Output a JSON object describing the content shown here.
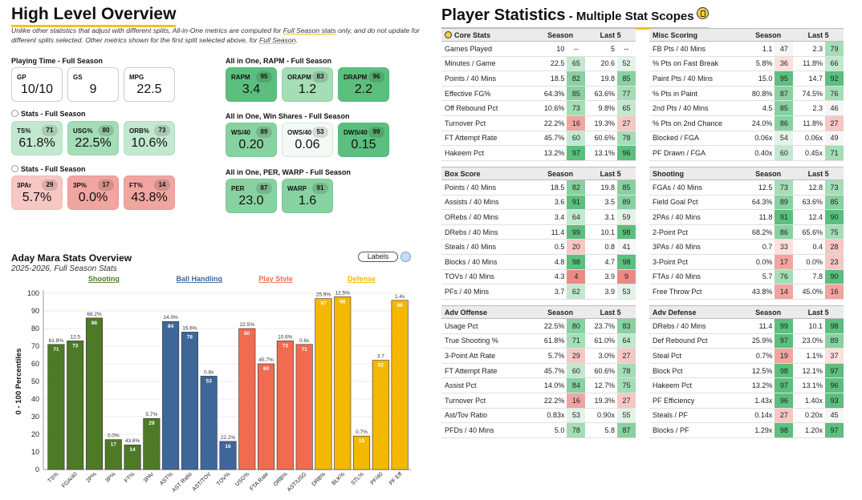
{
  "colors": {
    "shooting": "#4e7a27",
    "ball_handling": "#3f6699",
    "play_style": "#f26b50",
    "defense": "#f5b800",
    "accent": "#f0c419"
  },
  "overview": {
    "title": "High Level Overview",
    "note_part1": "Unlike other statistics that adjust with different splits, All-in-One metrics are computed for ",
    "note_link1": "Full Season stats",
    "note_part2": " only, and do not update for different splits selected. Other metrics shown for the first split selected above, for ",
    "note_link2": "Full Season",
    "note_part3": ".",
    "playing_time": {
      "label": "Playing Time - Full Season",
      "cards": [
        {
          "key": "GP",
          "value": "10/10"
        },
        {
          "key": "GS",
          "value": "9"
        },
        {
          "key": "MPG",
          "value": "22.5"
        }
      ]
    },
    "stats1": {
      "label": "Stats - Full Season",
      "cards": [
        {
          "key": "TS%",
          "pct": "71",
          "value": "61.8%"
        },
        {
          "key": "USG%",
          "pct": "80",
          "value": "22.5%"
        },
        {
          "key": "ORB%",
          "pct": "73",
          "value": "10.6%"
        }
      ]
    },
    "stats2": {
      "label": "Stats - Full Season",
      "cards": [
        {
          "key": "3PAr",
          "pct": "29",
          "value": "5.7%"
        },
        {
          "key": "3P%",
          "pct": "17",
          "value": "0.0%"
        },
        {
          "key": "FT%",
          "pct": "14",
          "value": "43.8%"
        }
      ]
    },
    "rapm": {
      "label": "All in One, RAPM - Full Season",
      "cards": [
        {
          "key": "RAPM",
          "pct": "95",
          "value": "3.4"
        },
        {
          "key": "ORAPM",
          "pct": "83",
          "value": "1.2"
        },
        {
          "key": "DRAPM",
          "pct": "96",
          "value": "2.2"
        }
      ]
    },
    "winshares": {
      "label": "All in One, Win Shares - Full Season",
      "cards": [
        {
          "key": "WS/40",
          "pct": "89",
          "value": "0.20"
        },
        {
          "key": "OWS/40",
          "pct": "53",
          "value": "0.06"
        },
        {
          "key": "DWS/40",
          "pct": "99",
          "value": "0.15"
        }
      ]
    },
    "perwarp": {
      "label": "All in One, PER, WARP - Full Season",
      "cards": [
        {
          "key": "PER",
          "pct": "87",
          "value": "23.0"
        },
        {
          "key": "WARP",
          "pct": "91",
          "value": "1.6"
        }
      ]
    }
  },
  "chart_section": {
    "title": "Aday Mara Stats Overview",
    "subtitle": "2025-2026, Full Season Stats",
    "labels_button": "Labels"
  },
  "chart_data": {
    "type": "bar",
    "ylabel": "0 - 100 Percentiles",
    "ylim": [
      0,
      100
    ],
    "yticks": [
      0,
      10,
      20,
      30,
      40,
      50,
      60,
      70,
      80,
      90,
      100
    ],
    "groups": [
      {
        "name": "Shooting",
        "color": "#4e7a27"
      },
      {
        "name": "Ball Handling",
        "color": "#3f6699"
      },
      {
        "name": "Play Style",
        "color": "#f26b50"
      },
      {
        "name": "Defense",
        "color": "#f5b800"
      }
    ],
    "bars": [
      {
        "cat": "TS%",
        "value": 71,
        "raw": "61.8%",
        "group": 0
      },
      {
        "cat": "FGA/40",
        "value": 73,
        "raw": "12.5",
        "group": 0
      },
      {
        "cat": "2P%",
        "value": 86,
        "raw": "68.2%",
        "group": 0
      },
      {
        "cat": "3P%",
        "value": 17,
        "raw": "0.0%",
        "group": 0
      },
      {
        "cat": "FT%",
        "value": 14,
        "raw": "43.8%",
        "group": 0
      },
      {
        "cat": "3PAr",
        "value": 29,
        "raw": "5.7%",
        "group": 0
      },
      {
        "cat": "AST%",
        "value": 84,
        "raw": "14.0%",
        "group": 1
      },
      {
        "cat": "AST Ratio",
        "value": 78,
        "raw": "15.6%",
        "group": 1
      },
      {
        "cat": "AST/TOV",
        "value": 53,
        "raw": "0.8x",
        "group": 1
      },
      {
        "cat": "TOV%",
        "value": 16,
        "raw": "22.2%",
        "group": 1
      },
      {
        "cat": "USG%",
        "value": 80,
        "raw": "22.5%",
        "group": 2
      },
      {
        "cat": "FTA Rate",
        "value": 60,
        "raw": "45.7%",
        "group": 2
      },
      {
        "cat": "ORB%",
        "value": 73,
        "raw": "10.6%",
        "group": 2
      },
      {
        "cat": "AST/USG",
        "value": 71,
        "raw": "0.6x",
        "group": 2
      },
      {
        "cat": "DRB%",
        "value": 97,
        "raw": "25.9%",
        "group": 3
      },
      {
        "cat": "BLK%",
        "value": 98,
        "raw": "12.5%",
        "group": 3
      },
      {
        "cat": "STL%",
        "value": 19,
        "raw": "0.7%",
        "group": 3
      },
      {
        "cat": "PF/40",
        "value": 62,
        "raw": "3.7",
        "group": 3
      },
      {
        "cat": "PF Eff",
        "value": 96,
        "raw": "1.4x",
        "group": 3
      }
    ]
  },
  "player_stats": {
    "title": "Player Statistics",
    "subtitle": " - Multiple Stat Scopes",
    "tables": [
      {
        "title": "Core Stats",
        "col1": "Season",
        "col2": "Last 5",
        "rows": [
          [
            "Games Played",
            "10",
            "",
            "5",
            ""
          ],
          [
            "Minutes / Game",
            "22.5",
            "65",
            "20.6",
            "52"
          ],
          [
            "Points / 40 Mins",
            "18.5",
            "82",
            "19.8",
            "85"
          ],
          [
            "Effective FG%",
            "64.3%",
            "85",
            "63.6%",
            "77"
          ],
          [
            "Off Rebound Pct",
            "10.6%",
            "73",
            "9.8%",
            "65"
          ],
          [
            "Turnover Pct",
            "22.2%",
            "16",
            "19.3%",
            "27"
          ],
          [
            "FT Attempt Rate",
            "45.7%",
            "60",
            "60.6%",
            "78"
          ],
          [
            "Hakeem Pct",
            "13.2%",
            "97",
            "13.1%",
            "96"
          ]
        ]
      },
      {
        "title": "Misc Scoring",
        "col1": "Season",
        "col2": "Last 5",
        "rows": [
          [
            "FB Pts / 40 Mins",
            "1.1",
            "47",
            "2.3",
            "79"
          ],
          [
            "% Pts on Fast Break",
            "5.8%",
            "36",
            "11.8%",
            "66"
          ],
          [
            "Paint Pts / 40 Mins",
            "15.0",
            "95",
            "14.7",
            "92"
          ],
          [
            "% Pts in Paint",
            "80.8%",
            "87",
            "74.5%",
            "76"
          ],
          [
            "2nd Pts / 40 Mins",
            "4.5",
            "85",
            "2.3",
            "46"
          ],
          [
            "% Pts on 2nd Chance",
            "24.0%",
            "86",
            "11.8%",
            "27"
          ],
          [
            "Blocked / FGA",
            "0.06x",
            "54",
            "0.06x",
            "49"
          ],
          [
            "PF Drawn / FGA",
            "0.40x",
            "60",
            "0.45x",
            "71"
          ]
        ]
      },
      {
        "title": "Box Score",
        "col1": "Season",
        "col2": "Last 5",
        "rows": [
          [
            "Points / 40 Mins",
            "18.5",
            "82",
            "19.8",
            "85"
          ],
          [
            "Assists / 40 Mins",
            "3.6",
            "91",
            "3.5",
            "89"
          ],
          [
            "ORebs / 40 Mins",
            "3.4",
            "64",
            "3.1",
            "59"
          ],
          [
            "DRebs / 40 Mins",
            "11.4",
            "99",
            "10.1",
            "98"
          ],
          [
            "Steals / 40 Mins",
            "0.5",
            "20",
            "0.8",
            "41"
          ],
          [
            "Blocks / 40 Mins",
            "4.8",
            "98",
            "4.7",
            "98"
          ],
          [
            "TOVs / 40 Mins",
            "4.3",
            "4",
            "3.9",
            "9"
          ],
          [
            "PFs / 40 Mins",
            "3.7",
            "62",
            "3.9",
            "53"
          ]
        ]
      },
      {
        "title": "Shooting",
        "col1": "Season",
        "col2": "Last 5",
        "rows": [
          [
            "FGAs / 40 Mins",
            "12.5",
            "73",
            "12.8",
            "73"
          ],
          [
            "Field Goal Pct",
            "64.3%",
            "89",
            "63.6%",
            "85"
          ],
          [
            "2PAs / 40 Mins",
            "11.8",
            "91",
            "12.4",
            "90"
          ],
          [
            "2-Point Pct",
            "68.2%",
            "86",
            "65.6%",
            "75"
          ],
          [
            "3PAs / 40 Mins",
            "0.7",
            "33",
            "0.4",
            "28"
          ],
          [
            "3-Point Pct",
            "0.0%",
            "17",
            "0.0%",
            "23"
          ],
          [
            "FTAs / 40 Mins",
            "5.7",
            "76",
            "7.8",
            "90"
          ],
          [
            "Free Throw Pct",
            "43.8%",
            "14",
            "45.0%",
            "16"
          ]
        ]
      },
      {
        "title": "Adv Offense",
        "col1": "Season",
        "col2": "Last 5",
        "rows": [
          [
            "Usage Pct",
            "22.5%",
            "80",
            "23.7%",
            "83"
          ],
          [
            "True Shooting %",
            "61.8%",
            "71",
            "61.0%",
            "64"
          ],
          [
            "3-Point Att Rate",
            "5.7%",
            "29",
            "3.0%",
            "27"
          ],
          [
            "FT Attempt Rate",
            "45.7%",
            "60",
            "60.6%",
            "78"
          ],
          [
            "Assist Pct",
            "14.0%",
            "84",
            "12.7%",
            "75"
          ],
          [
            "Turnover Pct",
            "22.2%",
            "16",
            "19.3%",
            "27"
          ],
          [
            "Ast/Tov Ratio",
            "0.83x",
            "53",
            "0.90x",
            "55"
          ],
          [
            "PFDs / 40 Mins",
            "5.0",
            "78",
            "5.8",
            "87"
          ]
        ]
      },
      {
        "title": "Adv Defense",
        "col1": "Season",
        "col2": "Last 5",
        "rows": [
          [
            "DRebs / 40 Mins",
            "11.4",
            "99",
            "10.1",
            "98"
          ],
          [
            "Def Rebound Pct",
            "25.9%",
            "97",
            "23.0%",
            "89"
          ],
          [
            "Steal Pct",
            "0.7%",
            "19",
            "1.1%",
            "37"
          ],
          [
            "Block Pct",
            "12.5%",
            "98",
            "12.1%",
            "97"
          ],
          [
            "Hakeem Pct",
            "13.2%",
            "97",
            "13.1%",
            "96"
          ],
          [
            "PF Efficiency",
            "1.43x",
            "96",
            "1.40x",
            "93"
          ],
          [
            "Steals / PF",
            "0.14x",
            "27",
            "0.20x",
            "45"
          ],
          [
            "Blocks / PF",
            "1.29x",
            "98",
            "1.20x",
            "97"
          ]
        ]
      }
    ]
  }
}
